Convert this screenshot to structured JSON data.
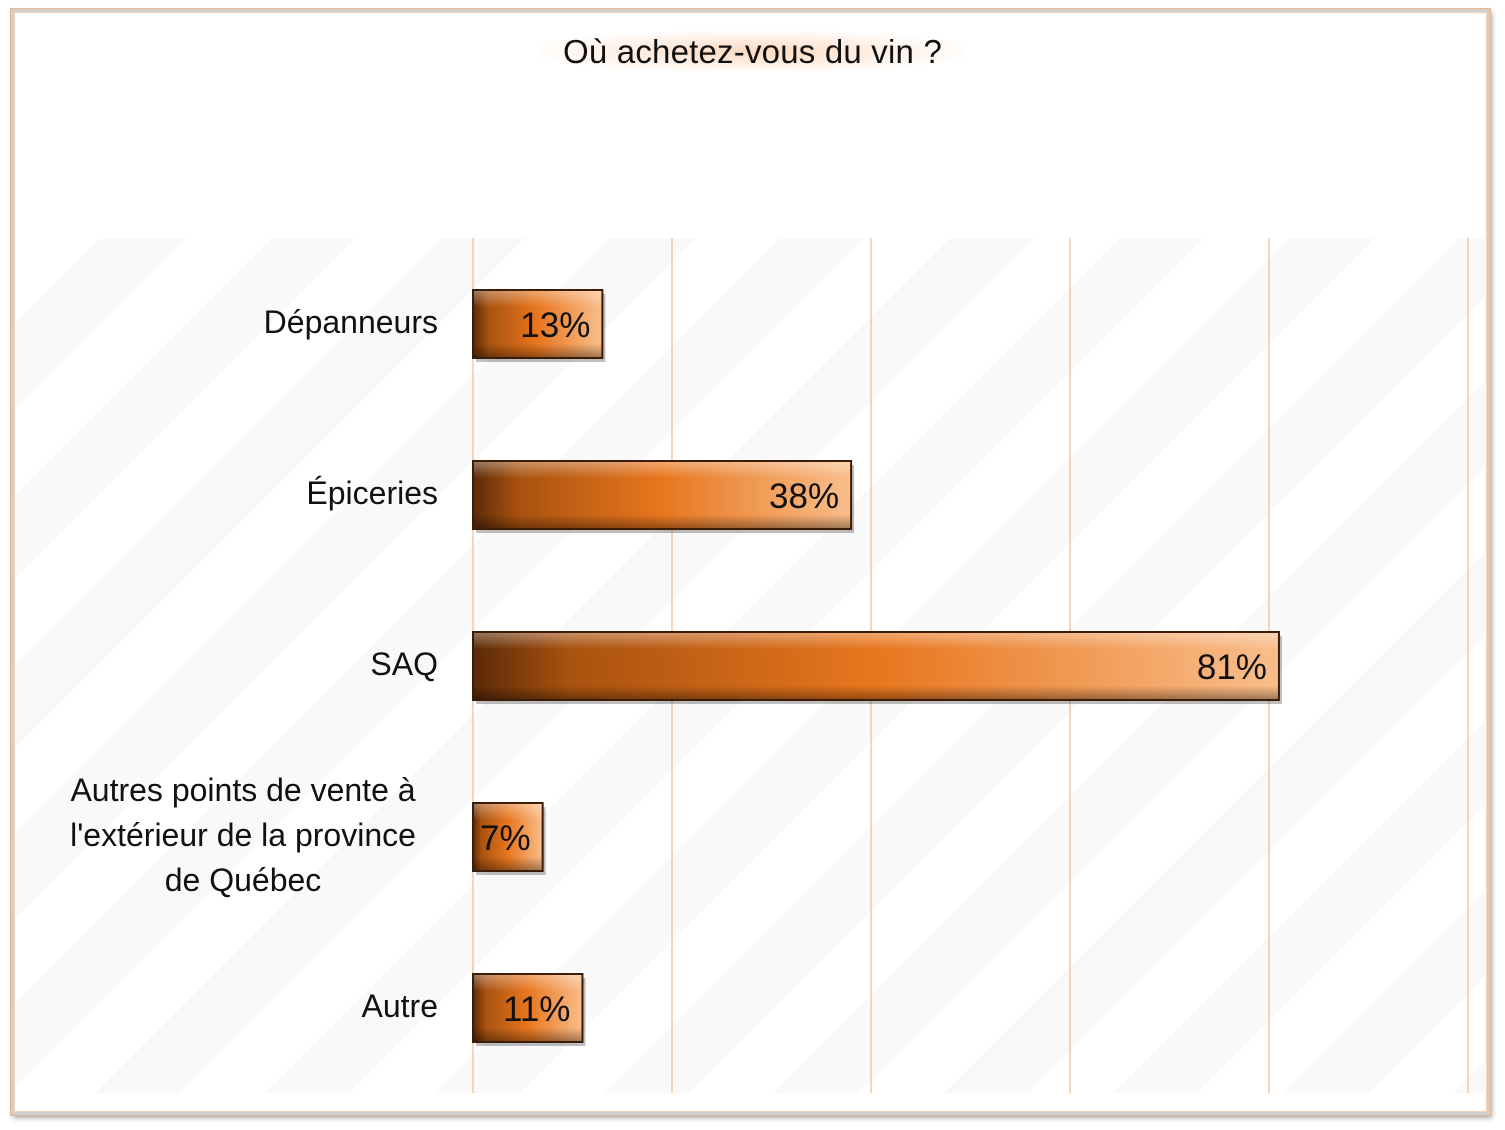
{
  "chart_data": {
    "type": "bar",
    "orientation": "horizontal",
    "title": "Où achetez-vous du vin ?",
    "categories": [
      "Dépanneurs",
      "Épiceries",
      "SAQ",
      "Autres points de vente à l'extérieur de la province de Québec",
      "Autre"
    ],
    "category_lines": [
      [
        "Dépanneurs"
      ],
      [
        "Épiceries"
      ],
      [
        "SAQ"
      ],
      [
        "Autres points de vente à",
        "l'extérieur de la province",
        "de Québec"
      ],
      [
        "Autre"
      ]
    ],
    "values": [
      13,
      38,
      81,
      7,
      11
    ],
    "data_labels": [
      "13%",
      "38%",
      "81%",
      "7%",
      "11%"
    ],
    "xlim": [
      0,
      100
    ],
    "x_gridlines": [
      0,
      20,
      40,
      60,
      80,
      100
    ],
    "grid": true,
    "legend": "none",
    "colors": {
      "bar_dark": "#7a3d12",
      "bar_mid": "#e8761e",
      "bar_light": "#f7b27a",
      "grid": "#f0c9a0",
      "text": "#111111"
    }
  }
}
